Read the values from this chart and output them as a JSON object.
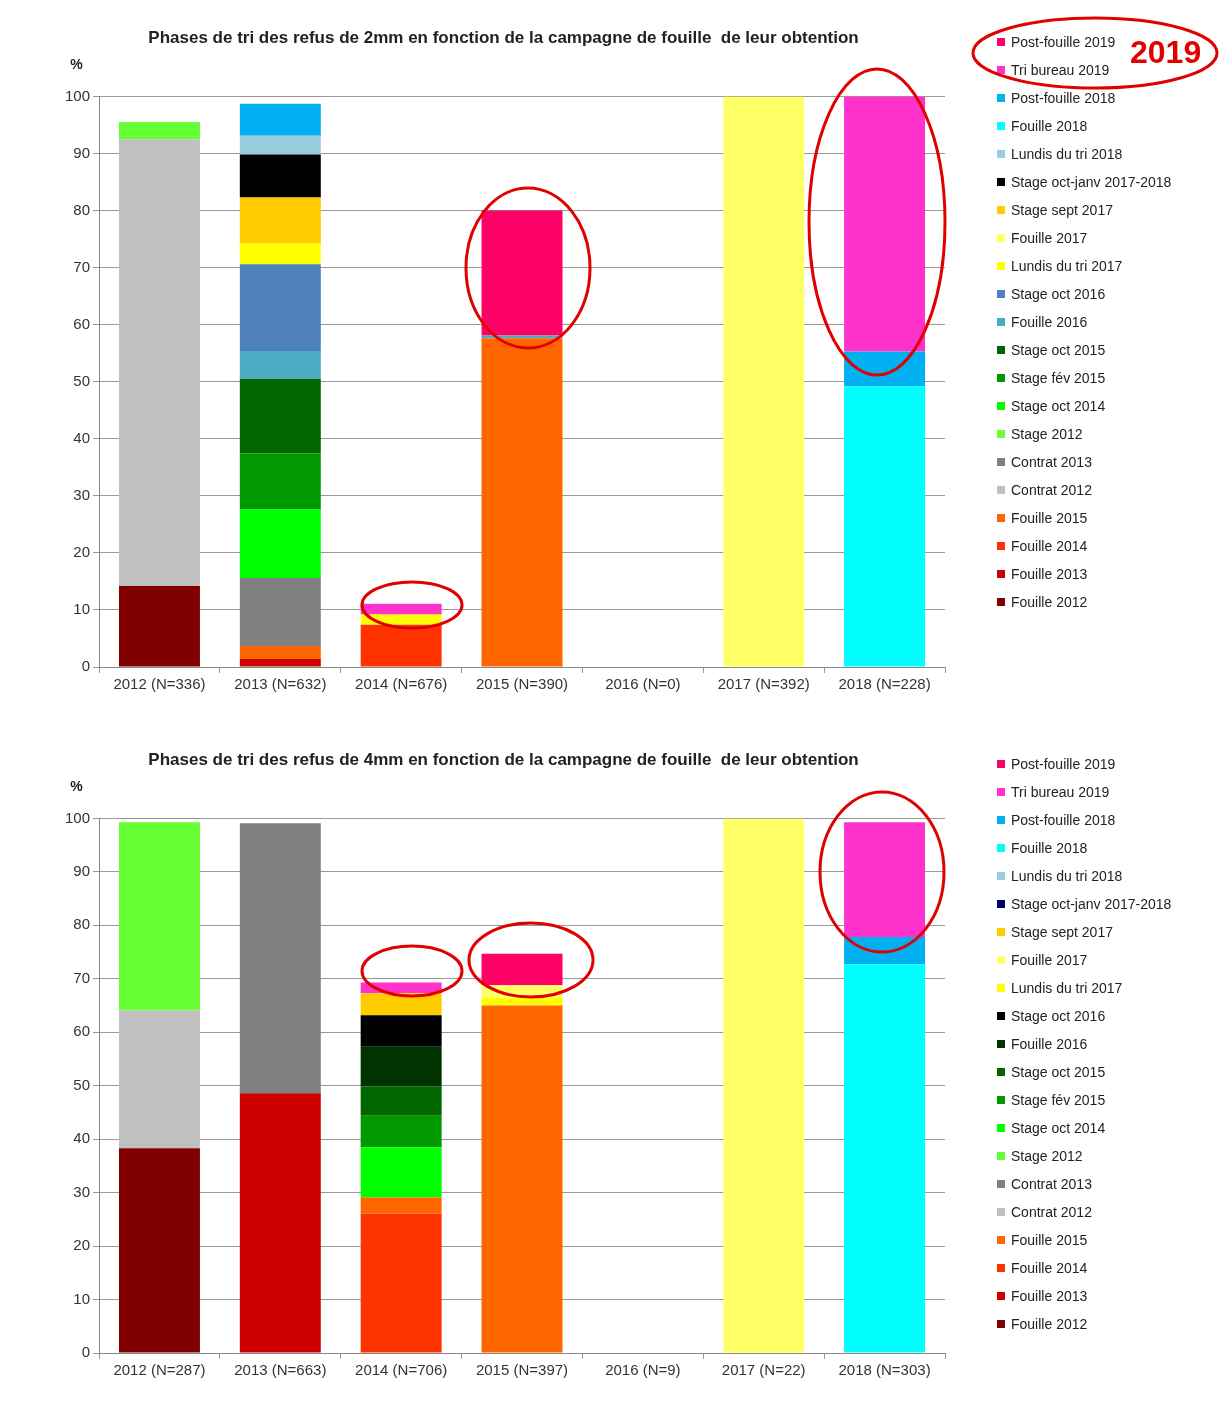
{
  "chart_data": [
    {
      "type": "bar",
      "title": "Phases de tri des refus de 2mm en fonction de la campagne de fouille  de leur obtention",
      "ylabel": "%",
      "annotations": [
        "2019"
      ],
      "stacked": true,
      "legend": "top right",
      "grid": "y",
      "ylim": [
        0,
        100
      ],
      "yticks": [
        0,
        10,
        20,
        30,
        40,
        50,
        60,
        70,
        80,
        90,
        100
      ],
      "categories": [
        "2012 (N=336)",
        "2013 (N=632)",
        "2014 (N=676)",
        "2015 (N=390)",
        "2016 (N=0)",
        "2017 (N=392)",
        "2018 (N=228)"
      ],
      "series": [
        {
          "name": "Fouille 2012",
          "color": "#800000",
          "values": [
            14.2,
            null,
            null,
            null,
            null,
            null,
            null
          ]
        },
        {
          "name": "Fouille 2013",
          "color": "#cc0000",
          "values": [
            null,
            1.4,
            null,
            null,
            null,
            null,
            null
          ]
        },
        {
          "name": "Fouille 2014",
          "color": "#ff3300",
          "values": [
            null,
            null,
            7.4,
            null,
            null,
            null,
            null
          ]
        },
        {
          "name": "Fouille 2015",
          "color": "#ff6600",
          "values": [
            null,
            2.3,
            null,
            57.6,
            null,
            null,
            null
          ]
        },
        {
          "name": "Contrat 2012",
          "color": "#c0c0c0",
          "values": [
            78.3,
            null,
            null,
            null,
            null,
            null,
            null
          ]
        },
        {
          "name": "Contrat 2013",
          "color": "#808080",
          "values": [
            null,
            11.9,
            null,
            null,
            null,
            null,
            null
          ]
        },
        {
          "name": "Stage 2012",
          "color": "#66ff33",
          "values": [
            3,
            null,
            null,
            null,
            null,
            null,
            null
          ]
        },
        {
          "name": "Stage oct 2014",
          "color": "#00ff00",
          "values": [
            null,
            12.0,
            null,
            null,
            null,
            null,
            null
          ]
        },
        {
          "name": "Stage fév 2015",
          "color": "#009900",
          "values": [
            null,
            9.8,
            null,
            null,
            null,
            null,
            null
          ]
        },
        {
          "name": "Stage oct 2015",
          "color": "#006600",
          "values": [
            null,
            13.1,
            null,
            null,
            null,
            null,
            null
          ]
        },
        {
          "name": "Fouille 2016",
          "color": "#4bacc6",
          "values": [
            null,
            4.9,
            null,
            0.5,
            null,
            null,
            null
          ]
        },
        {
          "name": "Stage oct 2016",
          "color": "#4f81bd",
          "values": [
            null,
            15.2,
            null,
            null,
            null,
            null,
            null
          ]
        },
        {
          "name": "Lundis du tri 2017",
          "color": "#ffff00",
          "values": [
            null,
            3.6,
            1.8,
            null,
            null,
            null,
            null
          ]
        },
        {
          "name": "Fouille 2017",
          "color": "#ffff66",
          "values": [
            null,
            null,
            null,
            null,
            null,
            100,
            null
          ]
        },
        {
          "name": "Stage sept 2017",
          "color": "#ffcc00",
          "values": [
            null,
            8.1,
            null,
            null,
            null,
            null,
            null
          ]
        },
        {
          "name": "Stage oct-janv 2017-2018",
          "color": "#000000",
          "values": [
            null,
            7.5,
            null,
            null,
            null,
            null,
            null
          ]
        },
        {
          "name": "Lundis du tri 2018",
          "color": "#99ccdd",
          "values": [
            null,
            3.3,
            null,
            null,
            null,
            null,
            null
          ]
        },
        {
          "name": "Fouille 2018",
          "color": "#00ffff",
          "values": [
            null,
            null,
            null,
            null,
            null,
            null,
            49.2
          ]
        },
        {
          "name": "Post-fouille 2018",
          "color": "#00b0f0",
          "values": [
            null,
            5.6,
            null,
            null,
            null,
            null,
            6.1
          ]
        },
        {
          "name": "Tri bureau 2019",
          "color": "#ff33cc",
          "values": [
            null,
            null,
            1.9,
            null,
            null,
            null,
            44.7
          ]
        },
        {
          "name": "Post-fouille 2019",
          "color": "#ff0066",
          "values": [
            null,
            null,
            null,
            21.9,
            null,
            null,
            null
          ]
        }
      ]
    },
    {
      "type": "bar",
      "title": "Phases de tri des refus de 4mm en fonction de la campagne de fouille  de leur obtention",
      "ylabel": "%",
      "stacked": true,
      "legend": "top right",
      "grid": "y",
      "ylim": [
        0,
        100
      ],
      "yticks": [
        0,
        10,
        20,
        30,
        40,
        50,
        60,
        70,
        80,
        90,
        100
      ],
      "categories": [
        "2012 (N=287)",
        "2013 (N=663)",
        "2014 (N=706)",
        "2015 (N=397)",
        "2016 (N=9)",
        "2017 (N=22)",
        "2018 (N=303)"
      ],
      "series": [
        {
          "name": "Fouille 2012",
          "color": "#800000",
          "values": [
            38.3,
            null,
            null,
            null,
            null,
            null,
            null
          ]
        },
        {
          "name": "Fouille 2013",
          "color": "#cc0000",
          "values": [
            null,
            48.6,
            null,
            null,
            null,
            null,
            null
          ]
        },
        {
          "name": "Fouille 2014",
          "color": "#ff3300",
          "values": [
            null,
            null,
            26.1,
            null,
            null,
            null,
            null
          ]
        },
        {
          "name": "Fouille 2015",
          "color": "#ff6600",
          "values": [
            null,
            null,
            3.0,
            65.0,
            null,
            null,
            null
          ]
        },
        {
          "name": "Contrat 2012",
          "color": "#c0c0c0",
          "values": [
            25.8,
            null,
            null,
            null,
            null,
            null,
            null
          ]
        },
        {
          "name": "Contrat 2013",
          "color": "#808080",
          "values": [
            null,
            50.5,
            null,
            null,
            null,
            null,
            null
          ]
        },
        {
          "name": "Stage 2012",
          "color": "#66ff33",
          "values": [
            35.2,
            null,
            null,
            null,
            null,
            null,
            null
          ]
        },
        {
          "name": "Stage oct 2014",
          "color": "#00ff00",
          "values": [
            null,
            null,
            9.4,
            null,
            null,
            null,
            null
          ]
        },
        {
          "name": "Stage fév 2015",
          "color": "#009900",
          "values": [
            null,
            null,
            5.9,
            null,
            null,
            null,
            null
          ]
        },
        {
          "name": "Stage oct 2015",
          "color": "#006600",
          "values": [
            null,
            null,
            5.5,
            null,
            null,
            null,
            null
          ]
        },
        {
          "name": "Fouille 2016",
          "color": "#003300",
          "values": [
            null,
            null,
            7.4,
            null,
            null,
            null,
            null
          ]
        },
        {
          "name": "Stage oct 2016",
          "color": "#000000",
          "values": [
            null,
            null,
            5.9,
            null,
            null,
            null,
            null
          ]
        },
        {
          "name": "Lundis du tri 2017",
          "color": "#ffff00",
          "values": [
            null,
            null,
            null,
            1.4,
            null,
            null,
            null
          ]
        },
        {
          "name": "Fouille 2017",
          "color": "#ffff66",
          "values": [
            null,
            null,
            null,
            2.4,
            null,
            100,
            null
          ]
        },
        {
          "name": "Stage sept 2017",
          "color": "#ffcc00",
          "values": [
            null,
            null,
            4.1,
            null,
            null,
            null,
            null
          ]
        },
        {
          "name": "Stage oct-janv 2017-2018",
          "color": "#000066",
          "values": [
            null,
            null,
            null,
            null,
            null,
            null,
            null
          ]
        },
        {
          "name": "Lundis du tri 2018",
          "color": "#99ccdd",
          "values": [
            null,
            null,
            null,
            null,
            null,
            null,
            null
          ]
        },
        {
          "name": "Fouille 2018",
          "color": "#00ffff",
          "values": [
            null,
            null,
            null,
            null,
            null,
            null,
            72.7
          ]
        },
        {
          "name": "Post-fouille 2018",
          "color": "#00b0f0",
          "values": [
            null,
            null,
            null,
            null,
            null,
            null,
            5.1
          ]
        },
        {
          "name": "Tri bureau 2019",
          "color": "#ff33cc",
          "values": [
            null,
            null,
            2.0,
            null,
            null,
            null,
            21.5
          ]
        },
        {
          "name": "Post-fouille 2019",
          "color": "#ff0066",
          "values": [
            null,
            null,
            null,
            5.9,
            null,
            null,
            null
          ]
        }
      ]
    }
  ]
}
